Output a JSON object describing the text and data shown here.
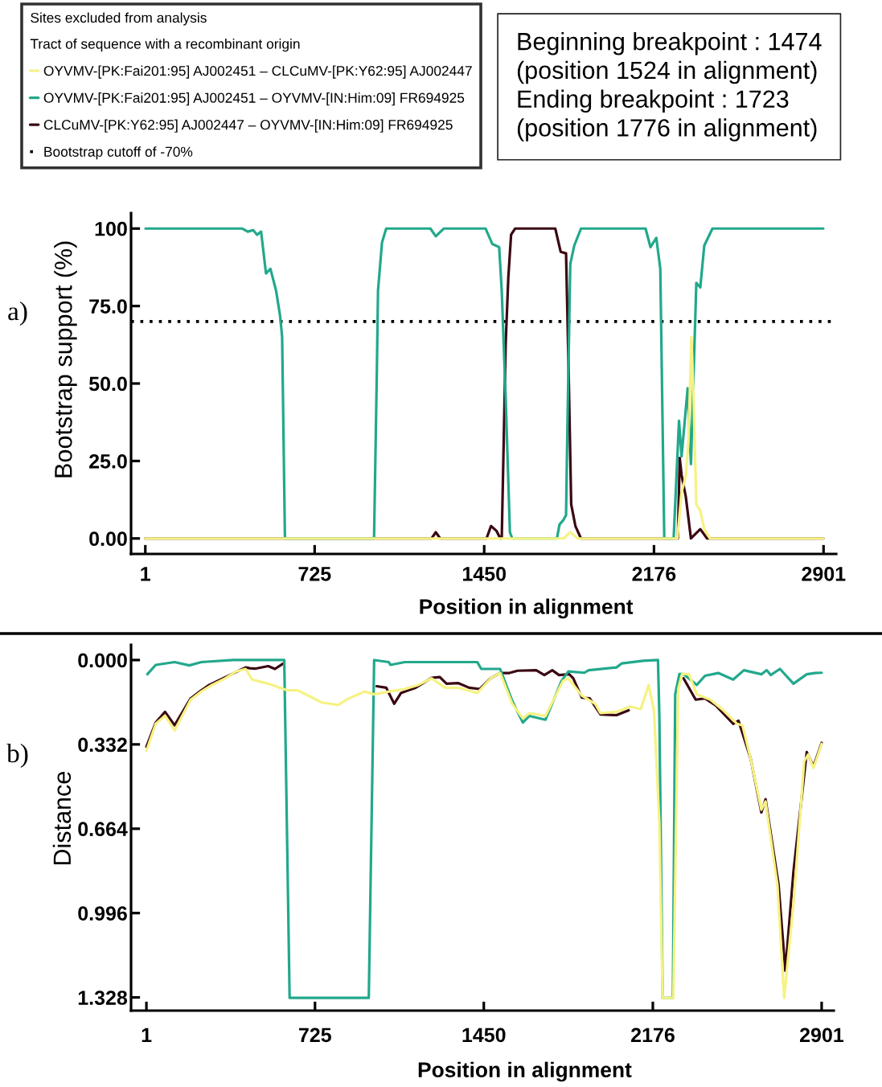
{
  "chart_data": [
    {
      "type": "line",
      "title": "a)",
      "xlabel": "Position in alignment",
      "ylabel": "Bootstrap support (%)",
      "xlim": [
        -60,
        2955
      ],
      "ylim": [
        -5,
        105
      ],
      "xticks": [
        1,
        725,
        1450,
        2176,
        2901
      ],
      "yticks": [
        {
          "value": 0,
          "label": "0.00"
        },
        {
          "value": 25,
          "label": "25.0"
        },
        {
          "value": 50,
          "label": "50.0"
        },
        {
          "value": 75,
          "label": "75.0"
        },
        100
      ],
      "legend": "top left",
      "legend_title": "Sites excluded from analysis\nTract of sequence with a recombinant origin",
      "series": [
        {
          "name": "OYVMV-[PK:Fai201:95] AJ002451 – CLCuMV-[PK:Y62:95] AJ002447",
          "color": "#f6f283",
          "x": [
            1,
            1790,
            1818,
            1850,
            2276,
            2294,
            2312,
            2323,
            2336,
            2345,
            2357,
            2374,
            2391,
            2415,
            2900
          ],
          "values": [
            0,
            0,
            2,
            0,
            0,
            15,
            20,
            31,
            65,
            46,
            11,
            9,
            3,
            0,
            0
          ]
        },
        {
          "name": "OYVMV-[PK:Fai201:95] AJ002451 – OYVMV-[IN:Him:09] FR694925",
          "color": "#22a88c",
          "x": [
            2,
            416,
            439,
            462,
            479,
            496,
            517,
            536,
            560,
            577,
            586,
            598,
            979,
            991,
            996,
            1013,
            1031,
            1220,
            1243,
            1277,
            1456,
            1485,
            1514,
            1525,
            1542,
            1560,
            1570,
            1761,
            1772,
            1789,
            1800,
            1806,
            1818,
            1835,
            1864,
            2140,
            2161,
            2186,
            2203,
            2220,
            2260,
            2283,
            2294,
            2320,
            2334,
            2357,
            2374,
            2391,
            2426,
            2900
          ],
          "values": [
            100,
            100,
            99,
            99.5,
            98,
            99,
            85.5,
            87,
            80,
            72,
            65,
            0,
            0,
            54,
            80,
            95.5,
            100,
            100,
            97.5,
            100,
            100,
            95,
            94,
            80,
            45,
            2,
            0,
            0,
            4.5,
            6,
            7.5,
            37,
            88.5,
            94.5,
            100,
            100,
            94,
            97,
            87,
            0,
            0,
            38,
            26.5,
            48.5,
            24,
            82.5,
            81,
            94.5,
            100,
            100
          ]
        },
        {
          "name": "CLCuMV-[PK:Y62:95] AJ002447 – OYVMV-[IN:Him:09] FR694925",
          "color": "#3a0812",
          "x": [
            1,
            1225,
            1243,
            1262,
            1460,
            1479,
            1502,
            1519,
            1525,
            1542,
            1553,
            1565,
            1582,
            1754,
            1777,
            1800,
            1811,
            1822,
            1840,
            1864,
            2278,
            2286,
            2294,
            2312,
            2334,
            2374,
            2403,
            2900
          ],
          "values": [
            0,
            0,
            2,
            0,
            0,
            4,
            2.5,
            0,
            0,
            63,
            84,
            98,
            100,
            100,
            92.5,
            92,
            54,
            11,
            4,
            0,
            0,
            26,
            20.5,
            13.5,
            0,
            3,
            0,
            0
          ]
        }
      ],
      "ref_lines": [
        {
          "axis": "y",
          "value": 70,
          "label": "Bootstrap cutoff of -70%",
          "color": "#000000",
          "line_style": "dotted"
        }
      ],
      "annotations": [
        "Beginning breakpoint : 1474\n(position 1524 in alignment)\nEnding breakpoint : 1723\n(position 1776 in alignment)"
      ]
    },
    {
      "type": "line",
      "title": "b)",
      "xlabel": "Position in alignment",
      "ylabel": "Distance",
      "xlim": [
        -65,
        2953
      ],
      "ylim": [
        1.38,
        -0.06
      ],
      "xticks": [
        1,
        725,
        1450,
        2176,
        2901
      ],
      "yticks": [
        {
          "value": 0,
          "label": "0.000"
        },
        0.332,
        0.664,
        0.996,
        1.328
      ],
      "legend": false,
      "series": [
        {
          "color": "#f6f283",
          "x": [
            1,
            41,
            81,
            122,
            191,
            237,
            283,
            340,
            386,
            427,
            455,
            524,
            605,
            651,
            755,
            824,
            870,
            939,
            979,
            1042,
            1111,
            1169,
            1226,
            1284,
            1341,
            1422,
            1479,
            1520,
            1572,
            1618,
            1646,
            1715,
            1790,
            1813,
            1871,
            1928,
            1951,
            2020,
            2078,
            2124,
            2158,
            2181,
            2204,
            2218,
            2264,
            2285,
            2302,
            2331,
            2365,
            2423,
            2480,
            2538,
            2561,
            2596,
            2642,
            2660,
            2711,
            2740,
            2780,
            2826,
            2843,
            2866,
            2901
          ],
          "values": [
            0.357,
            0.251,
            0.219,
            0.277,
            0.156,
            0.124,
            0.098,
            0.072,
            0.045,
            0.035,
            0.077,
            0.093,
            0.119,
            0.119,
            0.167,
            0.177,
            0.151,
            0.124,
            0.135,
            0.124,
            0.114,
            0.098,
            0.072,
            0.109,
            0.109,
            0.13,
            0.072,
            0.051,
            0.172,
            0.23,
            0.209,
            0.22,
            0.082,
            0.072,
            0.14,
            0.172,
            0.209,
            0.204,
            0.183,
            0.193,
            0.098,
            0.199,
            0.642,
            1.33,
            1.33,
            0.114,
            0.055,
            0.055,
            0.135,
            0.156,
            0.199,
            0.251,
            0.257,
            0.388,
            0.589,
            0.557,
            0.885,
            1.33,
            0.959,
            0.399,
            0.372,
            0.425,
            0.33
          ]
        },
        {
          "color": "#22a88c",
          "x": [
            5,
            41,
            122,
            185,
            237,
            375,
            593,
            616,
            956,
            979,
            1042,
            1049,
            1111,
            1422,
            1439,
            1520,
            1572,
            1618,
            1646,
            1715,
            1784,
            1813,
            1882,
            1900,
            2020,
            2043,
            2135,
            2198,
            2204,
            2218,
            2262,
            2272,
            2290,
            2307,
            2365,
            2400,
            2457,
            2521,
            2567,
            2642,
            2665,
            2682,
            2722,
            2780,
            2837,
            2872,
            2901
          ],
          "values": [
            0.056,
            0.019,
            0.008,
            0.021,
            0.008,
            0,
            0,
            1.33,
            1.33,
            0,
            0.008,
            0.019,
            0.008,
            0.008,
            0.035,
            0.035,
            0.161,
            0.246,
            0.22,
            0.235,
            0.082,
            0.045,
            0.05,
            0.04,
            0.029,
            0.013,
            0.003,
            0,
            0.22,
            1.33,
            1.33,
            0.135,
            0.055,
            0.055,
            0.098,
            0.062,
            0.051,
            0.077,
            0.04,
            0.056,
            0.04,
            0.059,
            0.035,
            0.093,
            0.056,
            0.051,
            0.05
          ]
        },
        {
          "color": "#3a0812",
          "x": [
            1,
            41,
            81,
            122,
            191,
            237,
            271,
            427,
            445,
            467,
            524,
            553,
            588,
            800,
            990,
            1031,
            1065,
            1094,
            1157,
            1226,
            1261,
            1290,
            1341,
            1387,
            1433,
            1479,
            1520,
            1560,
            1595,
            1675,
            1710,
            1744,
            1773,
            1817,
            1834,
            1871,
            1905,
            1951,
            2020,
            2072,
            2190,
            2308,
            2360,
            2400,
            2446,
            2521,
            2544,
            2596,
            2642,
            2660,
            2716,
            2745,
            2780,
            2837,
            2866,
            2901
          ],
          "values": [
            0.341,
            0.246,
            0.204,
            0.257,
            0.151,
            0.119,
            0.098,
            0.029,
            0.032,
            0.034,
            0.024,
            0.035,
            0.014,
            null,
            0.103,
            0.109,
            0.172,
            0.13,
            0.109,
            0.07,
            0.067,
            0.093,
            0.091,
            0.109,
            0.114,
            0.072,
            0.051,
            0.051,
            0.042,
            0.04,
            0.059,
            0.04,
            0.059,
            0.056,
            0.072,
            0.148,
            0.151,
            0.214,
            0.217,
            0.198,
            null,
            0.072,
            0.156,
            0.151,
            0.179,
            0.251,
            0.239,
            0.388,
            0.6,
            0.548,
            0.885,
            1.223,
            0.832,
            0.362,
            0.419,
            0.326
          ]
        }
      ]
    }
  ]
}
